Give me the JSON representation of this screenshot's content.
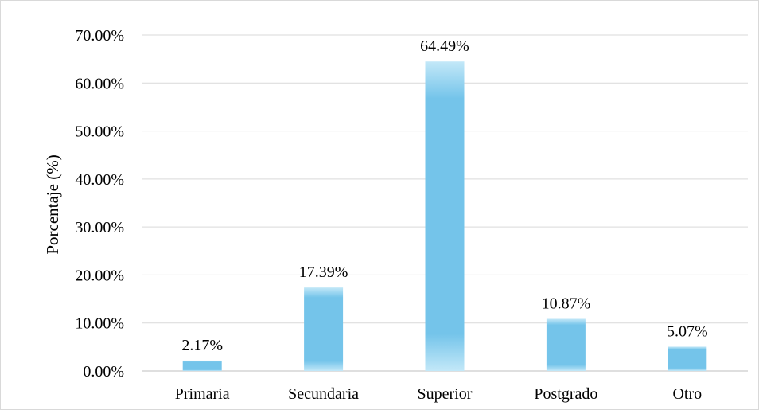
{
  "chart_data": {
    "type": "bar",
    "categories": [
      "Primaria",
      "Secundaria",
      "Superior",
      "Postgrado",
      "Otro"
    ],
    "values": [
      2.17,
      17.39,
      64.49,
      10.87,
      5.07
    ],
    "data_labels": [
      "2.17%",
      "17.39%",
      "64.49%",
      "10.87%",
      "5.07%"
    ],
    "title": "",
    "xlabel": "",
    "ylabel": "Porcentaje (%)",
    "ylim": [
      0,
      70
    ],
    "yticks": [
      0,
      10,
      20,
      30,
      40,
      50,
      60,
      70
    ],
    "ytick_labels": [
      "0.00%",
      "10.00%",
      "20.00%",
      "30.00%",
      "40.00%",
      "50.00%",
      "60.00%",
      "70.00%"
    ],
    "grid": true,
    "legend": "none",
    "colors": {
      "bar": "#74c4ea",
      "bar_highlight": "#c3e8f8",
      "grid": "#d9d9d9",
      "axis": "#bfbfbf"
    }
  }
}
